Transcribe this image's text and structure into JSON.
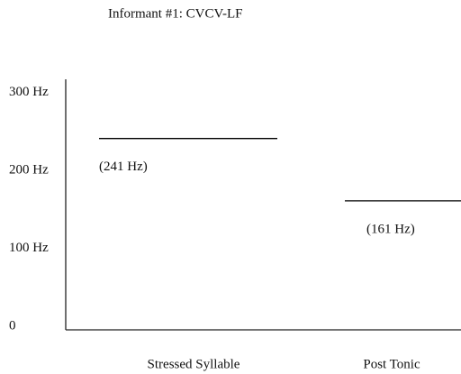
{
  "chart_data": {
    "type": "level",
    "title": "Informant #1: CVCV-LF",
    "categories": [
      "Stressed Syllable",
      "Post Tonic"
    ],
    "values": [
      241,
      161
    ],
    "value_labels": [
      "(241 Hz)",
      "(161 Hz)"
    ],
    "color": "#000000",
    "ylim": [
      0,
      317
    ],
    "yticks": [
      0,
      {
        "value": 100,
        "label": "100 Hz"
      },
      {
        "value": 200,
        "label": "200 Hz"
      },
      {
        "value": 300,
        "label": "300 Hz"
      }
    ],
    "grid": false
  }
}
